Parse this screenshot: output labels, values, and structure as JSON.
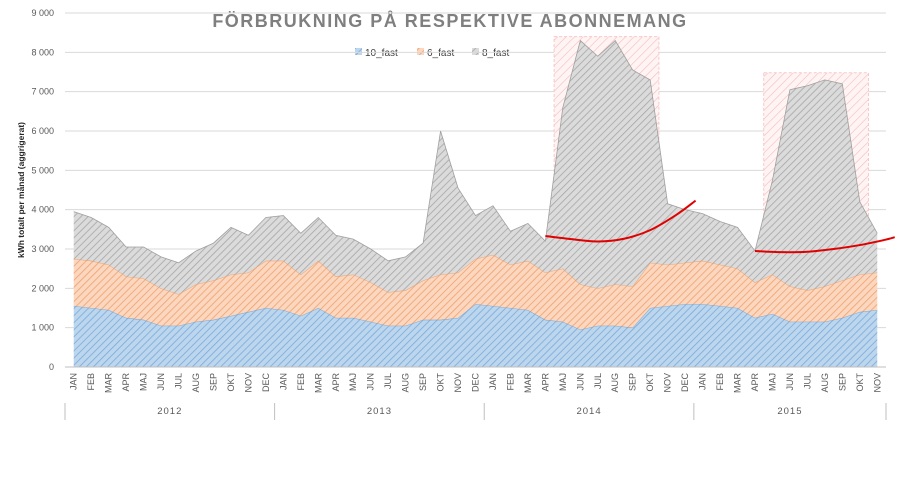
{
  "chart_data": {
    "type": "area",
    "stacked": true,
    "title": "FÖRBRUKNING PÅ RESPEKTIVE ABONNEMANG",
    "ylabel": "kWh totalt per månad (aggrigerat)",
    "xlabel": "",
    "ylim": [
      0,
      9000
    ],
    "yticks": [
      0,
      1000,
      2000,
      3000,
      4000,
      5000,
      6000,
      7000,
      8000,
      9000
    ],
    "ytick_labels": [
      "0",
      "1 000",
      "2 000",
      "3 000",
      "4 000",
      "5 000",
      "6 000",
      "7 000",
      "8 000",
      "9 000"
    ],
    "grid": true,
    "legend_position": "top-center",
    "categories": [
      "JAN",
      "FEB",
      "MAR",
      "APR",
      "MAJ",
      "JUN",
      "JUL",
      "AUG",
      "SEP",
      "OKT",
      "NOV",
      "DEC",
      "JAN",
      "FEB",
      "MAR",
      "APR",
      "MAJ",
      "JUN",
      "JUL",
      "AUG",
      "SEP",
      "OKT",
      "NOV",
      "DEC",
      "JAN",
      "FEB",
      "MAR",
      "APR",
      "MAJ",
      "JUN",
      "JUL",
      "AUG",
      "SEP",
      "OKT",
      "NOV",
      "DEC",
      "JAN",
      "FEB",
      "MAR",
      "APR",
      "MAJ",
      "JUN",
      "JUL",
      "AUG",
      "SEP",
      "OKT",
      "NOV"
    ],
    "year_groups": [
      {
        "label": "2012",
        "start": 0,
        "end": 11
      },
      {
        "label": "2013",
        "start": 12,
        "end": 23
      },
      {
        "label": "2014",
        "start": 24,
        "end": 35
      },
      {
        "label": "2015",
        "start": 36,
        "end": 46
      }
    ],
    "series": [
      {
        "name": "10_fast",
        "color": "#9dc3e6",
        "values": [
          1550,
          1500,
          1450,
          1250,
          1200,
          1050,
          1050,
          1150,
          1200,
          1300,
          1400,
          1500,
          1450,
          1300,
          1500,
          1250,
          1250,
          1150,
          1050,
          1050,
          1200,
          1200,
          1250,
          1600,
          1550,
          1500,
          1450,
          1200,
          1150,
          950,
          1050,
          1050,
          1000,
          1500,
          1550,
          1600,
          1600,
          1550,
          1500,
          1250,
          1350,
          1150,
          1150,
          1150,
          1250,
          1400,
          1450
        ]
      },
      {
        "name": "6_fast",
        "color": "#f4b183",
        "values": [
          1200,
          1200,
          1150,
          1050,
          1050,
          950,
          800,
          950,
          1000,
          1050,
          1000,
          1200,
          1250,
          1050,
          1200,
          1050,
          1100,
          1000,
          850,
          900,
          1000,
          1150,
          1150,
          1150,
          1300,
          1100,
          1250,
          1200,
          1350,
          1150,
          950,
          1050,
          1050,
          1150,
          1050,
          1050,
          1100,
          1050,
          1000,
          900,
          1000,
          900,
          800,
          900,
          950,
          950,
          950
        ]
      },
      {
        "name": "8_fast",
        "color": "#bfbfbf",
        "values": [
          1200,
          1100,
          950,
          750,
          800,
          800,
          800,
          850,
          950,
          1200,
          950,
          1100,
          1150,
          1050,
          1100,
          1050,
          900,
          850,
          800,
          850,
          950,
          3650,
          2150,
          1100,
          1250,
          850,
          950,
          800,
          4100,
          6200,
          5900,
          6200,
          5500,
          4650,
          1550,
          1350,
          1200,
          1100,
          1050,
          800,
          2400,
          5000,
          5200,
          5250,
          5000,
          1850,
          1000
        ]
      }
    ],
    "highlight_regions": [
      {
        "start": 28,
        "end": 33,
        "y_top": 8400
      },
      {
        "start": 40,
        "end": 45,
        "y_top": 7480
      }
    ],
    "trend_lines": [
      {
        "color": "#e00000",
        "points": [
          [
            27.0,
            3330
          ],
          [
            28.5,
            3250
          ],
          [
            30.0,
            3190
          ],
          [
            31.5,
            3260
          ],
          [
            33.0,
            3480
          ],
          [
            34.5,
            3870
          ],
          [
            35.6,
            4230
          ]
        ]
      },
      {
        "color": "#e00000",
        "points": [
          [
            39.0,
            2950
          ],
          [
            40.5,
            2920
          ],
          [
            42.0,
            2930
          ],
          [
            43.5,
            3000
          ],
          [
            45.0,
            3100
          ],
          [
            46.5,
            3240
          ],
          [
            47.0,
            3300
          ]
        ]
      }
    ]
  }
}
